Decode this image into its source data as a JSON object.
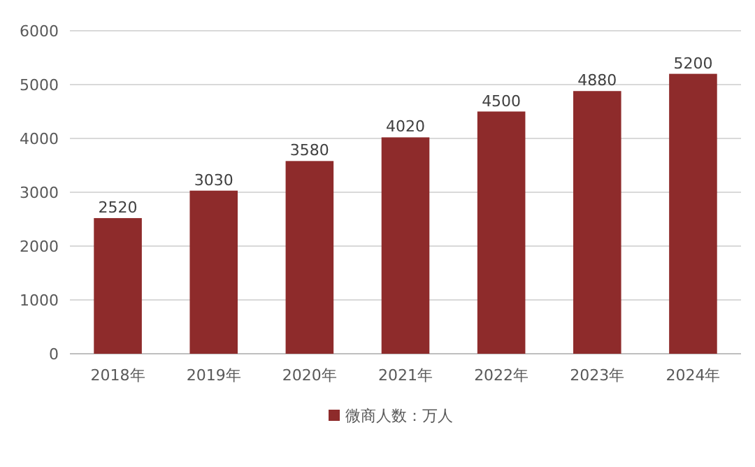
{
  "chart_data": {
    "type": "bar",
    "categories": [
      "2018年",
      "2019年",
      "2020年",
      "2021年",
      "2022年",
      "2023年",
      "2024年"
    ],
    "series": [
      {
        "name": "微商人数：万人",
        "color": "#8e2b2b",
        "values": [
          2520,
          3030,
          3580,
          4020,
          4500,
          4880,
          5200
        ]
      }
    ],
    "ylim": [
      0,
      6000
    ],
    "yticks": [
      0,
      1000,
      2000,
      3000,
      4000,
      5000,
      6000
    ],
    "grid": "y",
    "legend": "bottom",
    "data_labels": true
  }
}
